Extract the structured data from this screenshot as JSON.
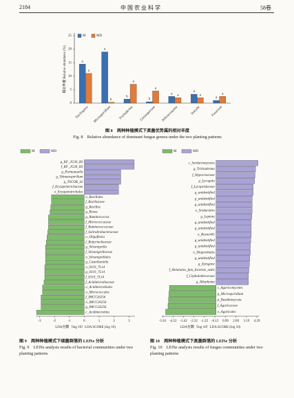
{
  "header": {
    "page": "2184",
    "journal": "中 国 农 业 科 学",
    "volume": "58卷"
  },
  "captions": [
    {
      "cn": "图 8　两种种植模式下真菌优势属的相对丰度",
      "en": "Fig. 8　Relative abundance of dominant fungus genera under the two planting patterns"
    },
    {
      "cn": "图 9　两种种植模式下细菌群落的 LEfSe 分析",
      "en": "Fig. 9　LEfSe analysis results of bacterial communities under two planting patterns"
    },
    {
      "cn": "图 10　两种种植模式下真菌群落的 LEfSe 分析",
      "en": "Fig. 10　LEfSe analysis results of fungus communities under two planting patterns"
    }
  ],
  "chart_data": [
    {
      "type": "bar",
      "y_label": "相对丰度 Relative abundance (%)",
      "categories": [
        "Trechispora",
        "Microsporidium",
        "Trichoderma",
        "Coniosporium",
        "Solicoccozyma",
        "Inocybe",
        "Fusarium"
      ],
      "series": [
        {
          "name": "M",
          "color": "#3a6fb0",
          "values": [
            14.5,
            19,
            1.5,
            0.5,
            2.5,
            3.3,
            1
          ],
          "letters": [
            "a",
            "a",
            "b",
            "b",
            "a",
            "a",
            "a"
          ]
        },
        {
          "name": "MD",
          "color": "#e07b39",
          "values": [
            11,
            0.3,
            7,
            4.5,
            2,
            2,
            2.5
          ],
          "letters": [
            "a",
            "b",
            "a",
            "a",
            "a",
            "a",
            "a"
          ]
        }
      ],
      "ylim": [
        0,
        25
      ],
      "yticks": [
        0,
        5,
        10,
        15,
        20,
        25
      ]
    },
    {
      "type": "lefse",
      "x_label": "LDA分数（log 10）LDA SCORE (log 10)",
      "series": [
        {
          "name": "MD",
          "color": "#a9a3d6",
          "categories": [
            "g_KF_JG30_B3",
            "f_KF_JG30_B3",
            "g_Parmanuella",
            "g_Telmatospirillum",
            "g_TSCOR_42",
            "f_Erysipelotrichaceae",
            "o_Erysipelotrichales"
          ],
          "values": [
            3.35,
            3.35,
            2.45,
            2.45,
            2.45,
            2.3,
            2.3
          ]
        },
        {
          "name": "M",
          "color": "#7dbb6a",
          "categories": [
            "o_Bacillales",
            "f_Bacillaceae",
            "g_Bacillus",
            "g_Bosea",
            "g_Ruminococcus",
            "f_Micrococcaceae",
            "f_Ruminococcaceae",
            "f_Solirubrobacteraceae",
            "o_Oligoflexia",
            "f_Beijerinckiaceae",
            "g_Silvanigrella",
            "f_Silvanigrellaceae",
            "o_Silvanigrellales",
            "g_Castellaniella",
            "o_0319_7L14",
            "g_0319_7L14",
            "f_0319_7L14",
            "f_Acidimicrobiaceae",
            "o_Acidimicrobiales",
            "o_Micrococcales",
            "f_IMCC26256",
            "o_IMCC26256",
            "g_IMCC26256",
            "c_Acidimicrobiia"
          ],
          "values": [
            -2.2,
            -2.2,
            -2.25,
            -2.3,
            -2.4,
            -2.4,
            -2.4,
            -2.45,
            -2.5,
            -2.55,
            -2.6,
            -2.6,
            -2.6,
            -2.6,
            -2.65,
            -2.65,
            -2.65,
            -2.7,
            -2.8,
            -2.8,
            -2.9,
            -2.9,
            -2.9,
            -3.2
          ]
        }
      ],
      "xlim": [
        -3.25,
        3.4
      ],
      "xticks": [
        -3,
        -2,
        -1,
        0,
        1,
        2,
        3
      ]
    },
    {
      "type": "lefse",
      "x_label": "LDA分数（log 10）LDA SCORE (log 10)",
      "series": [
        {
          "name": "MD",
          "color": "#a9a3d6",
          "categories": [
            "c_Sordariomycetes",
            "g_Trichoderma",
            "f_Hypocreaceae",
            "g_Lycogala",
            "f_Lycoperdaceae",
            "g_unidentified",
            "g_unidentified",
            "g_unidentified",
            "o_Sordariales",
            "g_Lepiota",
            "g_unidentified",
            "g_unidentified",
            "o_Branch05",
            "g_unidentified",
            "g_unidentified",
            "o_Diaporthales",
            "g_unidentified",
            "g_Xylogone",
            "f_Helotiales_fam_Incertae_sedis",
            "f_Cephalothecaceae",
            "g_Allophoma"
          ],
          "values": [
            4.4,
            4.15,
            4.1,
            4.05,
            3.9,
            3.9,
            3.8,
            3.8,
            3.8,
            3.75,
            3.7,
            3.7,
            3.7,
            3.65,
            3.6,
            3.6,
            3.55,
            3.5,
            3.45,
            3.4,
            3.4
          ]
        },
        {
          "name": "M",
          "color": "#7dbb6a",
          "categories": [
            "c_Agaricomycetes",
            "g_Microsporidium",
            "p_Basidiomycota",
            "f_Agaricaceae",
            "o_Agaricales"
          ],
          "values": [
            -4.9,
            -4.95,
            -5.0,
            -5.05,
            -5.3
          ]
        }
      ],
      "xlim": [
        -5.7,
        4.5
      ],
      "xticks": [
        -5.61,
        -4.52,
        -3.42,
        -2.32,
        -1.22,
        -0.12,
        0.99,
        2.09,
        3.19,
        4.29
      ]
    }
  ]
}
